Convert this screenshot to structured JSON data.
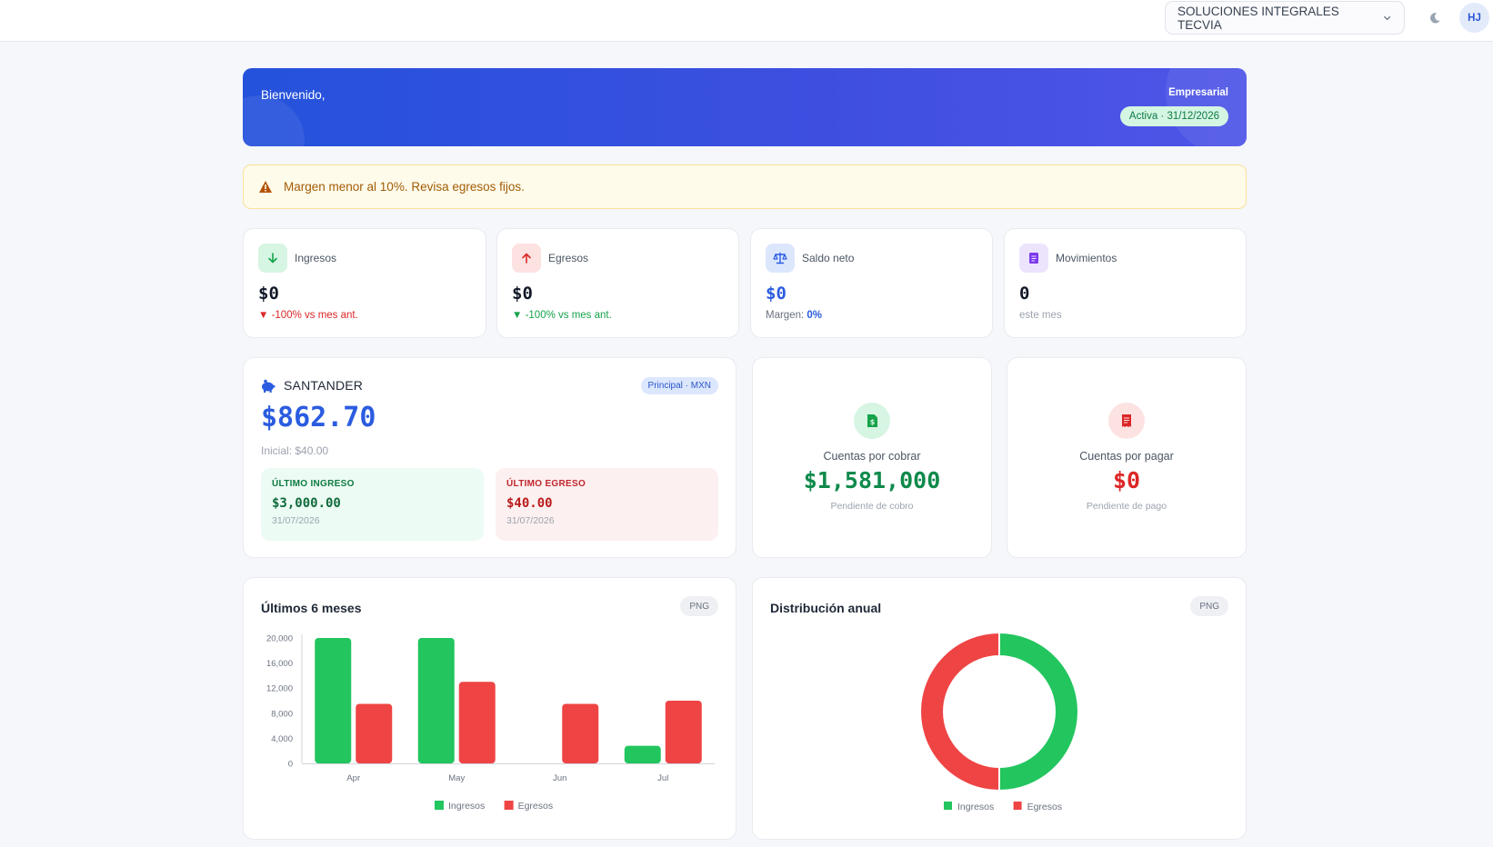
{
  "header": {
    "company": "SOLUCIONES INTEGRALES TECVIA",
    "avatar_initials": "HJ"
  },
  "hero": {
    "welcome": "Bienvenido,",
    "plan": "Empresarial",
    "status": "Activa · 31/12/2026"
  },
  "alert": {
    "message": "Margen menor al 10%. Revisa egresos fijos."
  },
  "stats": {
    "ingresos": {
      "label": "Ingresos",
      "value": "$0",
      "delta": "▼ -100% vs mes ant."
    },
    "egresos": {
      "label": "Egresos",
      "value": "$0",
      "delta": "▼ -100% vs mes ant."
    },
    "saldo": {
      "label": "Saldo neto",
      "value": "$0",
      "margin_label": "Margen:",
      "margin_value": "0%"
    },
    "movimientos": {
      "label": "Movimientos",
      "value": "0",
      "sub": "este mes"
    }
  },
  "bank": {
    "name": "SANTANDER",
    "badge": "Principal · MXN",
    "balance": "$862.70",
    "initial": "Inicial: $40.00",
    "last_income": {
      "heading": "ÚLTIMO INGRESO",
      "amount": "$3,000.00",
      "date": "31/07/2026"
    },
    "last_expense": {
      "heading": "ÚLTIMO EGRESO",
      "amount": "$40.00",
      "date": "31/07/2026"
    }
  },
  "receivable": {
    "label": "Cuentas por cobrar",
    "value": "$1,581,000",
    "sub": "Pendiente de cobro"
  },
  "payable": {
    "label": "Cuentas por pagar",
    "value": "$0",
    "sub": "Pendiente de pago"
  },
  "charts_ui": {
    "export_label": "PNG"
  },
  "colors": {
    "income": "#22c55e",
    "expense": "#ef4444",
    "accent": "#2b5ce0"
  },
  "chart_data": [
    {
      "type": "bar",
      "title": "Últimos 6 meses",
      "categories": [
        "Apr",
        "May",
        "Jun",
        "Jul"
      ],
      "series": [
        {
          "name": "Ingresos",
          "values": [
            20000,
            20000,
            0,
            2800
          ]
        },
        {
          "name": "Egresos",
          "values": [
            9500,
            13000,
            9500,
            10000
          ]
        }
      ],
      "yticks": [
        0,
        4000,
        8000,
        12000,
        16000,
        20000
      ],
      "ytick_labels": [
        "0",
        "4,000",
        "8,000",
        "12,000",
        "16,000",
        "20,000"
      ],
      "ylim": [
        0,
        20000
      ],
      "legend": "bottom"
    },
    {
      "type": "pie",
      "title": "Distribución anual",
      "labels": [
        "Ingresos",
        "Egresos"
      ],
      "values": [
        50,
        50
      ],
      "donut": true,
      "legend": "bottom"
    }
  ]
}
